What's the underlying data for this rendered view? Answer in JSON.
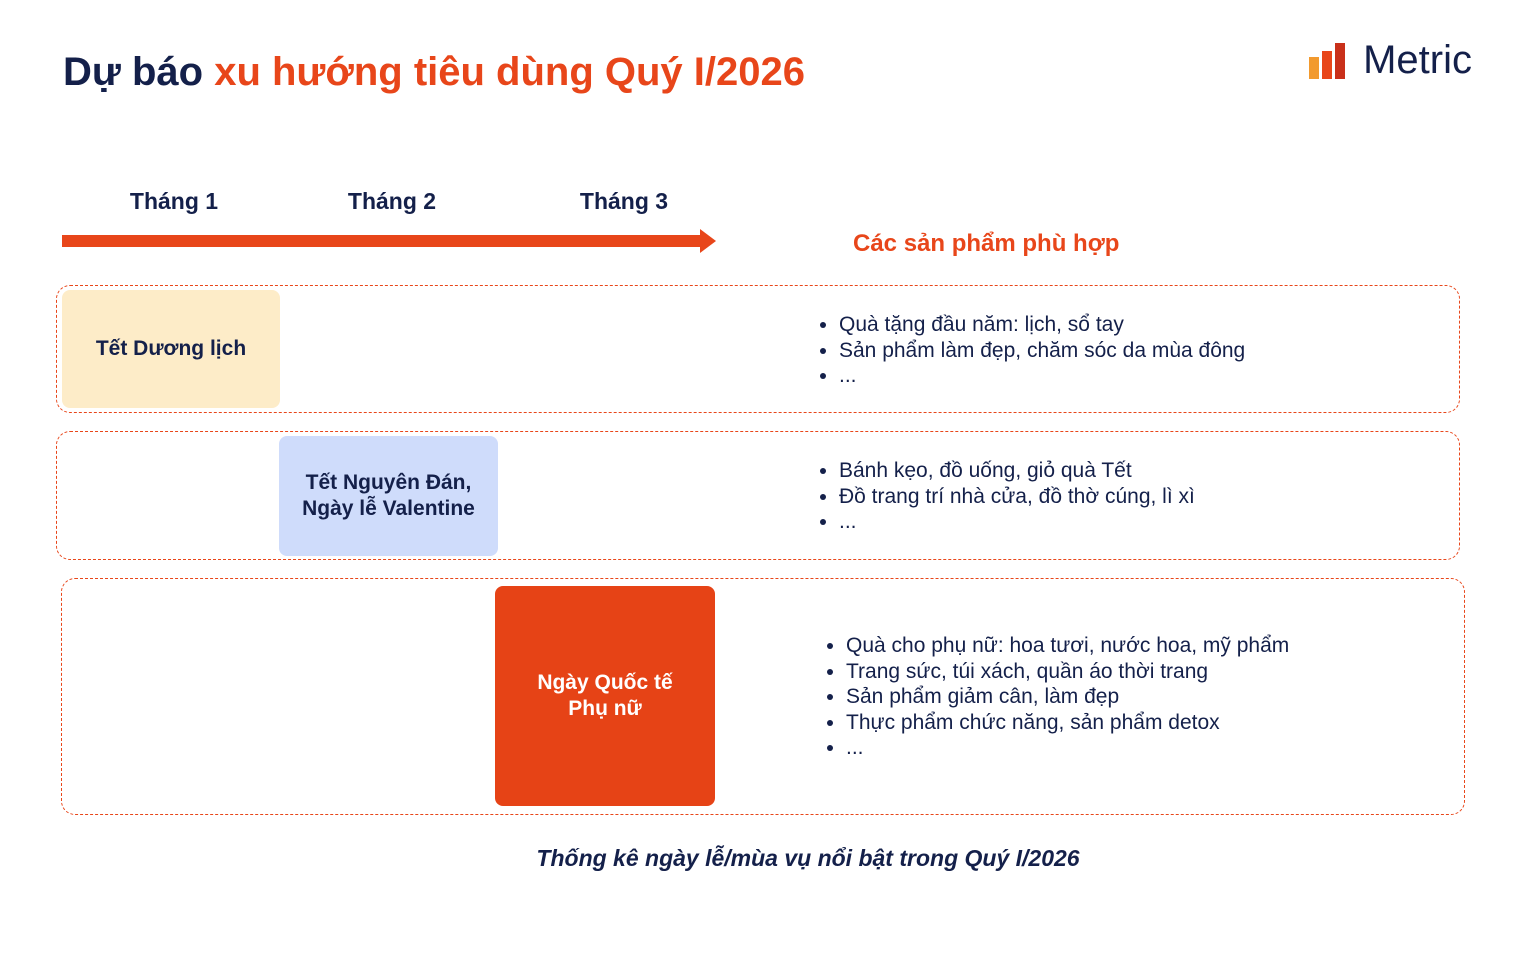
{
  "header": {
    "title_lead": "Dự báo",
    "title_rest": "xu hướng tiêu dùng Quý I/2026",
    "logo": "Metric"
  },
  "timeline": {
    "months": [
      "Tháng 1",
      "Tháng 2",
      "Tháng 3"
    ],
    "products_heading": "Các sản phẩm phù hợp"
  },
  "rows": [
    {
      "event": [
        "Tết Dương lịch"
      ],
      "items": [
        "Quà tặng đầu năm: lịch, sổ tay",
        "Sản phẩm làm đẹp, chăm sóc da mùa đông",
        "..."
      ]
    },
    {
      "event": [
        "Tết Nguyên Đán,",
        "Ngày lễ Valentine"
      ],
      "items": [
        "Bánh kẹo, đồ uống, giỏ quà Tết",
        "Đồ trang trí nhà cửa, đồ thờ cúng, lì xì",
        "..."
      ]
    },
    {
      "event": [
        "Ngày Quốc tế",
        "Phụ nữ"
      ],
      "items": [
        "Quà cho phụ nữ: hoa tươi, nước hoa, mỹ phẩm",
        "Trang sức, túi xách, quần áo thời trang",
        "Sản phẩm giảm cân, làm đẹp",
        "Thực phẩm chức năng, sản phẩm detox",
        "..."
      ]
    }
  ],
  "caption": "Thống kê ngày lễ/mùa vụ nổi bật trong Quý I/2026"
}
